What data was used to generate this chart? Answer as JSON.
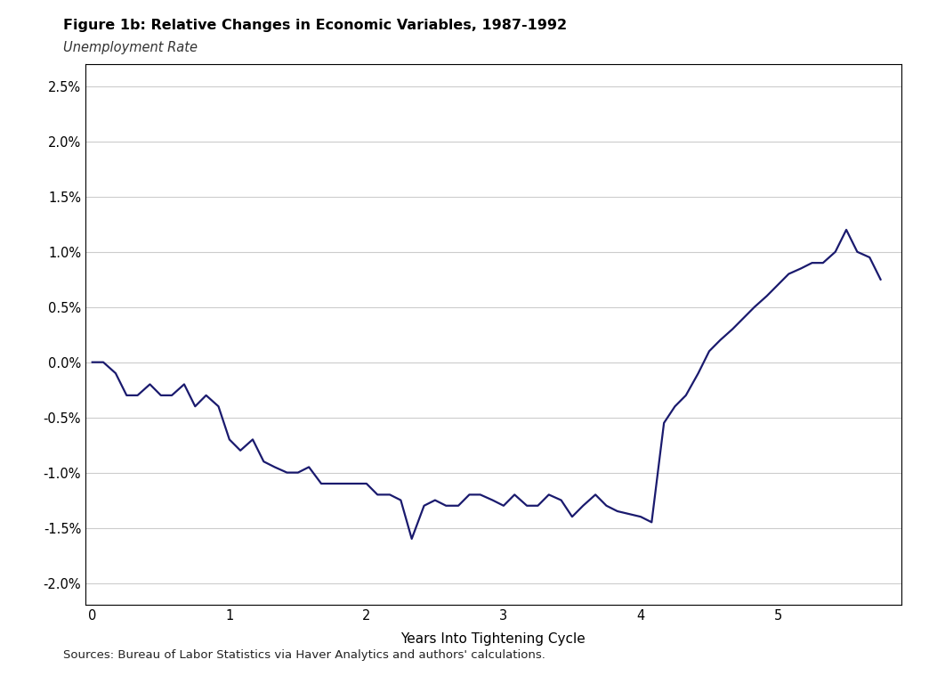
{
  "title": "Figure 1b: Relative Changes in Economic Variables, 1987-1992",
  "subtitle": "Unemployment Rate",
  "xlabel": "Years Into Tightening Cycle",
  "source_text": "Sources: Bureau of Labor Statistics via Haver Analytics and authors' calculations.",
  "line_color": "#1a1a6e",
  "line_width": 1.6,
  "ylim": [
    -0.022,
    0.027
  ],
  "xlim": [
    -0.05,
    5.9
  ],
  "yticks": [
    -0.02,
    -0.015,
    -0.01,
    -0.005,
    0.0,
    0.005,
    0.01,
    0.015,
    0.02,
    0.025
  ],
  "xticks": [
    0,
    1,
    2,
    3,
    4,
    5
  ],
  "background_color": "#ffffff",
  "x": [
    0.0,
    0.08,
    0.17,
    0.25,
    0.33,
    0.42,
    0.5,
    0.58,
    0.67,
    0.75,
    0.83,
    0.92,
    1.0,
    1.08,
    1.17,
    1.25,
    1.33,
    1.42,
    1.5,
    1.58,
    1.67,
    1.75,
    1.83,
    1.92,
    2.0,
    2.08,
    2.17,
    2.25,
    2.33,
    2.42,
    2.5,
    2.58,
    2.67,
    2.75,
    2.83,
    2.92,
    3.0,
    3.08,
    3.17,
    3.25,
    3.33,
    3.42,
    3.5,
    3.58,
    3.67,
    3.75,
    3.83,
    4.0,
    4.08,
    4.17,
    4.25,
    4.33,
    4.42,
    4.5,
    4.58,
    4.67,
    4.75,
    4.83,
    4.92,
    5.0,
    5.08,
    5.17,
    5.25,
    5.33,
    5.42,
    5.5,
    5.58,
    5.67,
    5.75
  ],
  "y": [
    0.0,
    0.0,
    -0.001,
    -0.003,
    -0.003,
    -0.002,
    -0.003,
    -0.003,
    -0.002,
    -0.004,
    -0.003,
    -0.004,
    -0.007,
    -0.008,
    -0.007,
    -0.009,
    -0.0095,
    -0.01,
    -0.01,
    -0.0095,
    -0.011,
    -0.011,
    -0.011,
    -0.011,
    -0.011,
    -0.012,
    -0.012,
    -0.0125,
    -0.016,
    -0.013,
    -0.0125,
    -0.013,
    -0.013,
    -0.012,
    -0.012,
    -0.0125,
    -0.013,
    -0.012,
    -0.013,
    -0.013,
    -0.012,
    -0.0125,
    -0.014,
    -0.013,
    -0.012,
    -0.013,
    -0.0135,
    -0.014,
    -0.0145,
    -0.0055,
    -0.004,
    -0.003,
    -0.001,
    0.001,
    0.002,
    0.003,
    0.004,
    0.005,
    0.006,
    0.007,
    0.008,
    0.0085,
    0.009,
    0.009,
    0.01,
    0.012,
    0.01,
    0.0095,
    0.0075
  ]
}
